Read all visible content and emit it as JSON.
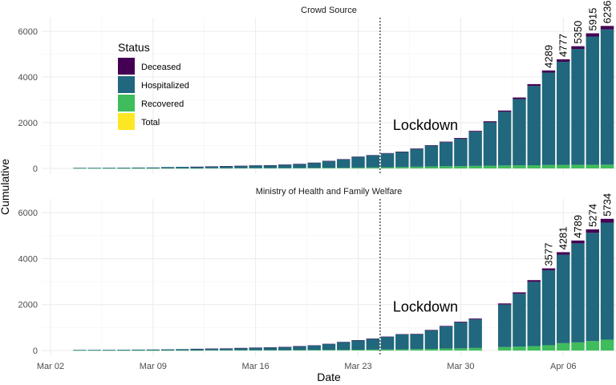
{
  "chart_data": {
    "type": "bar",
    "stacked": true,
    "xlabel": "Date",
    "ylabel": "Cumulative",
    "x_tick_labels": [
      "Mar 02",
      "Mar 09",
      "Mar 16",
      "Mar 23",
      "Mar 30",
      "Apr 06"
    ],
    "x_ticks_day": [
      2,
      9,
      16,
      23,
      30,
      37
    ],
    "x_range_day": [
      1.4,
      40.6
    ],
    "y_range": [
      0,
      6600
    ],
    "y_ticks": [
      0,
      2000,
      4000,
      6000
    ],
    "vline_day": 24.5,
    "legend": {
      "title": "Status",
      "position": "top-left",
      "entries": [
        {
          "label": "Deceased",
          "color": "#440154"
        },
        {
          "label": "Hospitalized",
          "color": "#21677d"
        },
        {
          "label": "Recovered",
          "color": "#3fbc5c"
        },
        {
          "label": "Total",
          "color": "#fde725"
        }
      ]
    },
    "panels": [
      {
        "title": "Crowd Source",
        "annotation": "Lockdown",
        "annotation_day": 24.5,
        "annotation_y": 1900,
        "bars": [
          {
            "date": "2020-03-04",
            "day": 4,
            "deceased": 0,
            "recovered": 3,
            "hospitalized": 25
          },
          {
            "date": "2020-03-05",
            "day": 5,
            "deceased": 0,
            "recovered": 3,
            "hospitalized": 26
          },
          {
            "date": "2020-03-06",
            "day": 6,
            "deceased": 0,
            "recovered": 3,
            "hospitalized": 28
          },
          {
            "date": "2020-03-07",
            "day": 7,
            "deceased": 0,
            "recovered": 3,
            "hospitalized": 31
          },
          {
            "date": "2020-03-08",
            "day": 8,
            "deceased": 0,
            "recovered": 3,
            "hospitalized": 36
          },
          {
            "date": "2020-03-09",
            "day": 9,
            "deceased": 0,
            "recovered": 3,
            "hospitalized": 40
          },
          {
            "date": "2020-03-10",
            "day": 10,
            "deceased": 0,
            "recovered": 4,
            "hospitalized": 58
          },
          {
            "date": "2020-03-11",
            "day": 11,
            "deceased": 0,
            "recovered": 4,
            "hospitalized": 66
          },
          {
            "date": "2020-03-12",
            "day": 12,
            "deceased": 1,
            "recovered": 4,
            "hospitalized": 70
          },
          {
            "date": "2020-03-13",
            "day": 13,
            "deceased": 2,
            "recovered": 10,
            "hospitalized": 78
          },
          {
            "date": "2020-03-14",
            "day": 14,
            "deceased": 2,
            "recovered": 10,
            "hospitalized": 92
          },
          {
            "date": "2020-03-15",
            "day": 15,
            "deceased": 2,
            "recovered": 13,
            "hospitalized": 100
          },
          {
            "date": "2020-03-16",
            "day": 16,
            "deceased": 2,
            "recovered": 14,
            "hospitalized": 115
          },
          {
            "date": "2020-03-17",
            "day": 17,
            "deceased": 3,
            "recovered": 15,
            "hospitalized": 125
          },
          {
            "date": "2020-03-18",
            "day": 18,
            "deceased": 3,
            "recovered": 15,
            "hospitalized": 150
          },
          {
            "date": "2020-03-19",
            "day": 19,
            "deceased": 4,
            "recovered": 20,
            "hospitalized": 175
          },
          {
            "date": "2020-03-20",
            "day": 20,
            "deceased": 5,
            "recovered": 23,
            "hospitalized": 225
          },
          {
            "date": "2020-03-21",
            "day": 21,
            "deceased": 7,
            "recovered": 25,
            "hospitalized": 300
          },
          {
            "date": "2020-03-22",
            "day": 22,
            "deceased": 8,
            "recovered": 30,
            "hospitalized": 370
          },
          {
            "date": "2020-03-23",
            "day": 23,
            "deceased": 10,
            "recovered": 38,
            "hospitalized": 470
          },
          {
            "date": "2020-03-24",
            "day": 24,
            "deceased": 11,
            "recovered": 45,
            "hospitalized": 530
          },
          {
            "date": "2020-03-25",
            "day": 25,
            "deceased": 13,
            "recovered": 50,
            "hospitalized": 610
          },
          {
            "date": "2020-03-26",
            "day": 26,
            "deceased": 17,
            "recovered": 60,
            "hospitalized": 660
          },
          {
            "date": "2020-03-27",
            "day": 27,
            "deceased": 20,
            "recovered": 75,
            "hospitalized": 780
          },
          {
            "date": "2020-03-28",
            "day": 28,
            "deceased": 24,
            "recovered": 85,
            "hospitalized": 910
          },
          {
            "date": "2020-03-29",
            "day": 29,
            "deceased": 27,
            "recovered": 95,
            "hospitalized": 1050
          },
          {
            "date": "2020-03-30",
            "day": 30,
            "deceased": 32,
            "recovered": 100,
            "hospitalized": 1200
          },
          {
            "date": "2020-03-31",
            "day": 31,
            "deceased": 35,
            "recovered": 110,
            "hospitalized": 1500
          },
          {
            "date": "2020-04-01",
            "day": 32,
            "deceased": 45,
            "recovered": 120,
            "hospitalized": 1900
          },
          {
            "date": "2020-04-02",
            "day": 33,
            "deceased": 55,
            "recovered": 130,
            "hospitalized": 2350
          },
          {
            "date": "2020-04-03",
            "day": 34,
            "deceased": 70,
            "recovered": 135,
            "hospitalized": 2900
          },
          {
            "date": "2020-04-04",
            "day": 35,
            "deceased": 80,
            "recovered": 140,
            "hospitalized": 3470
          },
          {
            "date": "2020-04-05",
            "day": 36,
            "deceased": 95,
            "recovered": 150,
            "hospitalized": 4044,
            "label": "4289"
          },
          {
            "date": "2020-04-06",
            "day": 37,
            "deceased": 110,
            "recovered": 155,
            "hospitalized": 4512,
            "label": "4777"
          },
          {
            "date": "2020-04-07",
            "day": 38,
            "deceased": 120,
            "recovered": 160,
            "hospitalized": 5070,
            "label": "5350"
          },
          {
            "date": "2020-04-08",
            "day": 39,
            "deceased": 140,
            "recovered": 160,
            "hospitalized": 5615,
            "label": "5915"
          },
          {
            "date": "2020-04-09",
            "day": 40,
            "deceased": 150,
            "recovered": 165,
            "hospitalized": 5921,
            "label": "6236"
          }
        ]
      },
      {
        "title": "Ministry of Health and Family Welfare",
        "annotation": "Lockdown",
        "annotation_day": 24.5,
        "annotation_y": 1900,
        "bars": [
          {
            "date": "2020-03-04",
            "day": 4,
            "deceased": 0,
            "recovered": 3,
            "hospitalized": 25
          },
          {
            "date": "2020-03-05",
            "day": 5,
            "deceased": 0,
            "recovered": 3,
            "hospitalized": 26
          },
          {
            "date": "2020-03-06",
            "day": 6,
            "deceased": 0,
            "recovered": 3,
            "hospitalized": 28
          },
          {
            "date": "2020-03-07",
            "day": 7,
            "deceased": 0,
            "recovered": 3,
            "hospitalized": 31
          },
          {
            "date": "2020-03-08",
            "day": 8,
            "deceased": 0,
            "recovered": 3,
            "hospitalized": 36
          },
          {
            "date": "2020-03-09",
            "day": 9,
            "deceased": 0,
            "recovered": 3,
            "hospitalized": 41
          },
          {
            "date": "2020-03-10",
            "day": 10,
            "deceased": 0,
            "recovered": 4,
            "hospitalized": 48
          },
          {
            "date": "2020-03-11",
            "day": 11,
            "deceased": 0,
            "recovered": 4,
            "hospitalized": 57
          },
          {
            "date": "2020-03-12",
            "day": 12,
            "deceased": 1,
            "recovered": 4,
            "hospitalized": 68
          },
          {
            "date": "2020-03-13",
            "day": 13,
            "deceased": 2,
            "recovered": 10,
            "hospitalized": 70
          },
          {
            "date": "2020-03-14",
            "day": 14,
            "deceased": 2,
            "recovered": 10,
            "hospitalized": 78
          },
          {
            "date": "2020-03-15",
            "day": 15,
            "deceased": 2,
            "recovered": 13,
            "hospitalized": 95
          },
          {
            "date": "2020-03-16",
            "day": 16,
            "deceased": 2,
            "recovered": 14,
            "hospitalized": 110
          },
          {
            "date": "2020-03-17",
            "day": 17,
            "deceased": 3,
            "recovered": 15,
            "hospitalized": 120
          },
          {
            "date": "2020-03-18",
            "day": 18,
            "deceased": 3,
            "recovered": 15,
            "hospitalized": 140
          },
          {
            "date": "2020-03-19",
            "day": 19,
            "deceased": 4,
            "recovered": 20,
            "hospitalized": 170
          },
          {
            "date": "2020-03-20",
            "day": 20,
            "deceased": 4,
            "recovered": 23,
            "hospitalized": 200
          },
          {
            "date": "2020-03-21",
            "day": 21,
            "deceased": 5,
            "recovered": 25,
            "hospitalized": 260
          },
          {
            "date": "2020-03-22",
            "day": 22,
            "deceased": 7,
            "recovered": 27,
            "hospitalized": 340
          },
          {
            "date": "2020-03-23",
            "day": 23,
            "deceased": 9,
            "recovered": 35,
            "hospitalized": 410
          },
          {
            "date": "2020-03-24",
            "day": 24,
            "deceased": 10,
            "recovered": 40,
            "hospitalized": 470
          },
          {
            "date": "2020-03-25",
            "day": 25,
            "deceased": 11,
            "recovered": 45,
            "hospitalized": 550
          },
          {
            "date": "2020-03-26",
            "day": 26,
            "deceased": 13,
            "recovered": 50,
            "hospitalized": 650
          },
          {
            "date": "2020-03-27",
            "day": 27,
            "deceased": 17,
            "recovered": 60,
            "hospitalized": 650
          },
          {
            "date": "2020-03-28",
            "day": 28,
            "deceased": 19,
            "recovered": 70,
            "hospitalized": 810
          },
          {
            "date": "2020-03-29",
            "day": 29,
            "deceased": 25,
            "recovered": 85,
            "hospitalized": 960
          },
          {
            "date": "2020-03-30",
            "day": 30,
            "deceased": 29,
            "recovered": 95,
            "hospitalized": 1130
          },
          {
            "date": "2020-03-31",
            "day": 31,
            "deceased": 32,
            "recovered": 110,
            "hospitalized": 1250
          },
          {
            "date": "2020-04-02",
            "day": 33,
            "deceased": 50,
            "recovered": 150,
            "hospitalized": 1850
          },
          {
            "date": "2020-04-03",
            "day": 34,
            "deceased": 62,
            "recovered": 170,
            "hospitalized": 2300
          },
          {
            "date": "2020-04-04",
            "day": 35,
            "deceased": 75,
            "recovered": 190,
            "hospitalized": 2800
          },
          {
            "date": "2020-04-05",
            "day": 36,
            "deceased": 83,
            "recovered": 229,
            "hospitalized": 3265,
            "label": "3577"
          },
          {
            "date": "2020-04-06",
            "day": 37,
            "deceased": 111,
            "recovered": 320,
            "hospitalized": 3850,
            "label": "4281"
          },
          {
            "date": "2020-04-07",
            "day": 38,
            "deceased": 124,
            "recovered": 353,
            "hospitalized": 4312,
            "label": "4789"
          },
          {
            "date": "2020-04-08",
            "day": 39,
            "deceased": 149,
            "recovered": 410,
            "hospitalized": 4715,
            "label": "5274"
          },
          {
            "date": "2020-04-09",
            "day": 40,
            "deceased": 166,
            "recovered": 473,
            "hospitalized": 5095,
            "label": "5734"
          }
        ]
      }
    ]
  }
}
